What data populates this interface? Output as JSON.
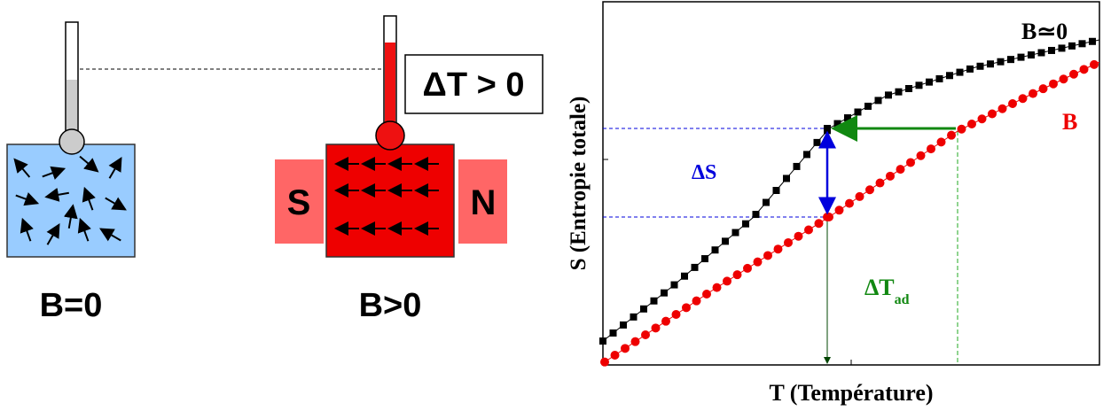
{
  "left": {
    "delta_t_box": "ΔT > 0",
    "magnet_south": "S",
    "magnet_north": "N",
    "label_no_field": "B=0",
    "label_field": "B>0"
  },
  "graph": {
    "y_axis_label": "S (Entropie totale)",
    "x_axis_label": "T (Température)",
    "curve_zero_field": "B≃0",
    "curve_field": "B",
    "delta_s": "ΔS",
    "delta_t_ad": {
      "main": "ΔT",
      "sub": "ad"
    }
  }
}
